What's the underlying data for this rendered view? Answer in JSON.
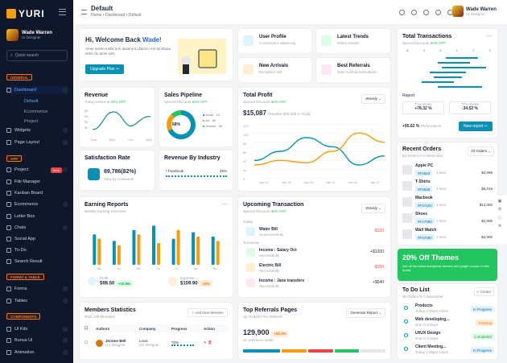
{
  "brand": "YURI",
  "user": {
    "name": "Wade Warren",
    "role": "UI Designer"
  },
  "sidebar": {
    "search_placeholder": "Quick search",
    "sections": {
      "general": "GENERAL",
      "app": "APP",
      "forms": "FORMS & TABLE",
      "components": "COMPONENTS"
    },
    "dashboard": "Dashboard",
    "dashboard_badge": "6",
    "subs": [
      "Default",
      "Ecommerce",
      "Project"
    ],
    "items": [
      "Widgets",
      "Page Layout",
      "Project",
      "File Manager",
      "Kanban Board",
      "Ecommerce",
      "Letter Box",
      "Chats",
      "Social App",
      "To-Do",
      "Search Result",
      "Forms",
      "Tables",
      "UI Kits",
      "Bonus Ui",
      "Animation"
    ],
    "new_label": "New"
  },
  "header": {
    "title": "Default",
    "breadcrumb": "Home • Dashboard • Default"
  },
  "welcome": {
    "title": "Hi, Welcome Back ",
    "name": "Wade!",
    "text": "Amet minim mollit non deserunt ullamco est sit aliqua dolor do amet sint.",
    "button": "Upgrade Plan"
  },
  "quick": [
    {
      "title": "User Profile",
      "sub": "Consectetur adipiscing"
    },
    {
      "title": "Latest Trends",
      "sub": "Minim veniam"
    },
    {
      "title": "New Arrivals",
      "sub": "Excepteur sint"
    },
    {
      "title": "Best Referrals",
      "sub": "Quis nostrud exercitation"
    }
  ],
  "revenue": {
    "title": "Revenue",
    "sub": "Today Revenue",
    "pct": "20% OFF",
    "yticks": [
      "$5",
      "$4",
      "$2",
      "$0"
    ],
    "x": [
      "Sun",
      "Mon",
      "Tue",
      "Wed"
    ]
  },
  "pipeline": {
    "title": "Sales Pipeline",
    "sub": "Special Discount",
    "pct": "60% OFF",
    "center": "68%",
    "legend": [
      "Done - 10",
      "Ad - 60",
      "Search - 30"
    ]
  },
  "profit": {
    "title": "Total Profit",
    "sub": "Special Discount",
    "pct": "60% OFF",
    "amount": "$15,087",
    "note": "(Number  $20,000 to Goal)",
    "dropdown": "Weekly",
    "yticks": [
      "120",
      "100",
      "80",
      "60",
      "40",
      "20",
      "0"
    ],
    "x": [
      "Jan 02",
      "Jan 05",
      "Jan 09",
      "Jan 11",
      "Jan 14",
      "Jan 17"
    ]
  },
  "satisfaction": {
    "title": "Satisfaction Rate",
    "value": "89,786(82%)",
    "sub": "View by Consumer"
  },
  "industry": {
    "title": "Revenue By Industry",
    "label": "Facebook",
    "pct": "45%"
  },
  "earning": {
    "title": "Earning Reports",
    "sub": "Weekly Earning Overview",
    "x": [
      "Mo",
      "Tu",
      "We",
      "Th",
      "Fr",
      "Sa",
      "Su"
    ],
    "profit_label": "Profit",
    "profit_value": "$98.50",
    "profit_pct": "+10.5%",
    "expense_label": "Expense",
    "expense_value": "$109.90",
    "expense_pct": "-10%"
  },
  "upcoming": {
    "title": "Upcoming Transaction",
    "sub": "Special Discount",
    "pct": "60% OFF",
    "dropdown": "Weekly",
    "today": "Today",
    "tomorrow": "Tomorrow",
    "rows": [
      {
        "name": "Water Bill",
        "status": "Unsuccessfully",
        "amount": "-$120"
      },
      {
        "name": "Income : Salary Oct",
        "status": "Successfully",
        "amount": "+$1200"
      },
      {
        "name": "Electric Bill",
        "status": "Successfully",
        "amount": "-$150"
      },
      {
        "name": "Income : Jane transfers",
        "status": "Successfully",
        "amount": "+$540"
      }
    ]
  },
  "members": {
    "title": "Members Statistics",
    "sub": "Total 136 Members",
    "button": "+ Add New Member",
    "cols": [
      "Authors",
      "Company",
      "Progress",
      "Action"
    ],
    "row": {
      "name": "Jerome Bell",
      "role": "UX designer",
      "company": "Louis",
      "dept": "UX designer",
      "progress": "70%"
    }
  },
  "referrals": {
    "title": "Top Referrals Pages",
    "sub": "Up To $100 Per Referral",
    "button": "Generate Report",
    "value": "129,900",
    "pct": "+65.2%",
    "note": "vs. previous month"
  },
  "transactions": {
    "title": "Total Transactions",
    "sub": "Special Discount",
    "pct": "60% OFF",
    "x": [
      "-5",
      "0",
      "5",
      "1",
      "2",
      "3"
    ],
    "report": "Report",
    "this_week": "This Week",
    "this_week_val": "+78.32 %",
    "last_week": "This Week",
    "last_week_val": "-34.52 %",
    "perf": "+95.62 %",
    "perf_label": "Performance",
    "new_report": "New report"
  },
  "orders": {
    "title": "Recent Orders",
    "sub": "64 Orders in A December",
    "dropdown": "All Orders",
    "items": [
      {
        "name": "Apple PC",
        "id": "#F2623",
        "qty": "1 Item",
        "price": "$3,099"
      },
      {
        "name": "T-Shirts",
        "id": "#F0948",
        "qty": "1 Item",
        "price": "$5,019"
      },
      {
        "name": "Macbook",
        "id": "#F47100",
        "qty": "1 Item",
        "price": "$13,000"
      },
      {
        "name": "Shoes",
        "id": "#F47000",
        "qty": "1 Item",
        "price": "$2,000"
      },
      {
        "name": "Wall Watch",
        "id": "#F47000",
        "qty": "1 Item",
        "price": "$2,000"
      }
    ]
  },
  "promo": {
    "title": "20% Off Themes",
    "text": "Get all the latest wordpress themes and plugin coupon in this board."
  },
  "todo": {
    "title": "To Do List",
    "sub": "86 Orders In A December",
    "button": "+ Create",
    "items": [
      {
        "title": "Products",
        "time": "Today 3:00pm Clock",
        "status": "In Progress"
      },
      {
        "title": "Web developing...",
        "time": "Due in 3 Days",
        "status": "Pending"
      },
      {
        "title": "UI/UX Design",
        "time": "Due in 3 Days",
        "status": "Completed"
      },
      {
        "title": "Client Meeting...",
        "time": "Today 1:00pm Clock",
        "status": "In Progress"
      }
    ]
  },
  "colors": {
    "accent": "#0891b2",
    "orange": "#f97316",
    "sidebar": "#0f172a"
  },
  "chart_data": [
    {
      "type": "bar",
      "title": "Earning Reports",
      "categories": [
        "Mo",
        "Tu",
        "We",
        "Th",
        "Fr",
        "Sa",
        "Su"
      ],
      "series": [
        {
          "values": [
            70,
            55,
            80,
            90,
            60,
            75,
            65
          ]
        },
        {
          "values": [
            60,
            45,
            70,
            50,
            80,
            65,
            55
          ]
        }
      ]
    },
    {
      "type": "line",
      "title": "Total Profit",
      "x": [
        "Jan 02",
        "Jan 05",
        "Jan 09",
        "Jan 11",
        "Jan 14",
        "Jan 17"
      ],
      "ylim": [
        0,
        120
      ],
      "series": [
        {
          "values": [
            40,
            60,
            90,
            70,
            30,
            50
          ]
        },
        {
          "values": [
            30,
            40,
            35,
            60,
            100,
            80
          ]
        }
      ]
    }
  ]
}
